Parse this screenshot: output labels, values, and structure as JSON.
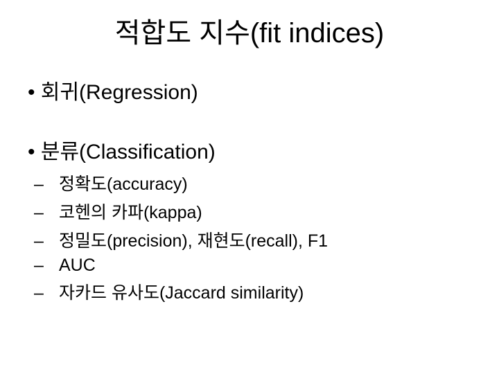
{
  "title": "적합도 지수(fit indices)",
  "bullets": {
    "regression": "회귀(Regression)",
    "classification": "분류(Classification)",
    "sub": {
      "accuracy": "정확도(accuracy)",
      "kappa": "코헨의 카파(kappa)",
      "precision_recall": "정밀도(precision), 재현도(recall), F1",
      "auc": "AUC",
      "jaccard": "자카드 유사도(Jaccard similarity)"
    }
  },
  "colors": {
    "background": "#ffffff",
    "text": "#000000"
  },
  "typography": {
    "title_fontsize": 40,
    "l1_fontsize": 30,
    "l2_fontsize": 25,
    "font_family": "Arial, Malgun Gothic, sans-serif"
  }
}
